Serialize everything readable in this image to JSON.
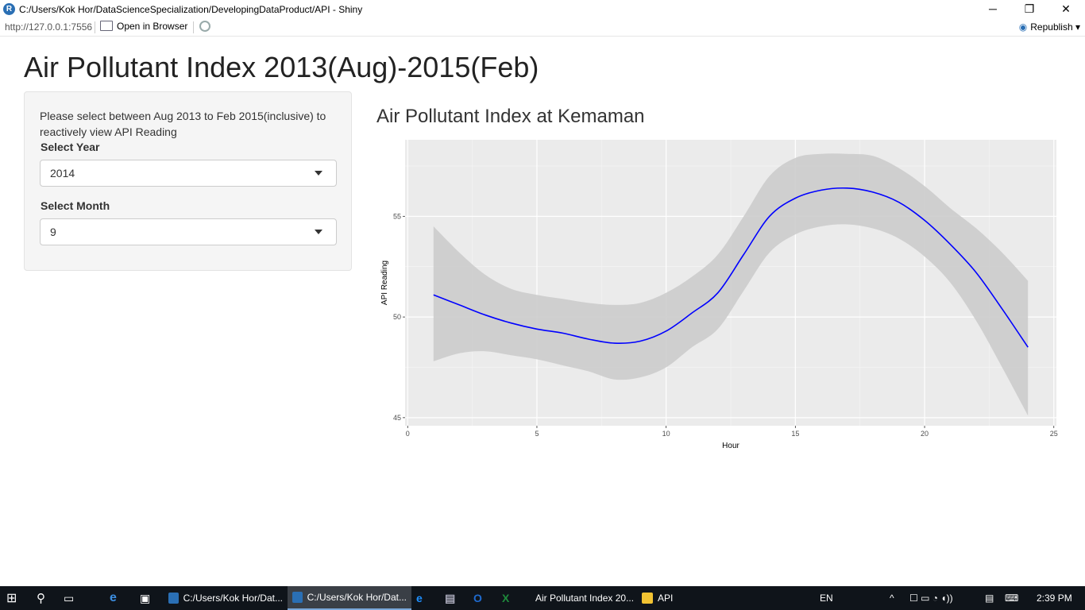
{
  "window": {
    "title": "C:/Users/Kok Hor/DataScienceSpecialization/DevelopingDataProduct/API - Shiny",
    "controls": [
      "─",
      "❐",
      "✕"
    ]
  },
  "toolbar": {
    "url": "http://127.0.0.1:7556",
    "open_in_browser": "Open in Browser",
    "republish": "Republish"
  },
  "page": {
    "title": "Air Pollutant Index 2013(Aug)-2015(Feb)"
  },
  "sidebar": {
    "instructions": "Please select between Aug 2013 to Feb 2015(inclusive) to reactively view API Reading",
    "year_label": "Select Year",
    "year_value": "2014",
    "month_label": "Select Month",
    "month_value": "9"
  },
  "chart_data": {
    "type": "line",
    "title": "Air Pollutant Index at Kemaman",
    "xlabel": "Hour",
    "ylabel": "API Reading",
    "xlim": [
      -0.1,
      25.1
    ],
    "ylim": [
      44.6,
      58.8
    ],
    "x_ticks": [
      0,
      5,
      10,
      15,
      20,
      25
    ],
    "y_ticks": [
      45,
      50,
      55
    ],
    "grid": true,
    "line_color": "#0000ff",
    "band_color": "#cccccc",
    "panel_color": "#ebebeb",
    "series": [
      {
        "x": [
          1,
          2,
          3,
          4,
          5,
          6,
          7,
          8,
          9,
          10,
          11,
          12,
          13,
          14,
          15,
          16,
          17,
          18,
          19,
          20,
          21,
          22,
          23,
          24
        ],
        "y": [
          51.1,
          50.6,
          50.1,
          49.7,
          49.4,
          49.2,
          48.9,
          48.7,
          48.8,
          49.3,
          50.2,
          51.2,
          53.1,
          55.0,
          55.9,
          56.3,
          56.4,
          56.2,
          55.7,
          54.8,
          53.6,
          52.2,
          50.4,
          48.5
        ],
        "lower": [
          47.8,
          48.2,
          48.3,
          48.1,
          47.9,
          47.6,
          47.3,
          46.9,
          47.0,
          47.5,
          48.5,
          49.4,
          51.3,
          53.2,
          54.1,
          54.5,
          54.6,
          54.4,
          53.9,
          53.0,
          51.7,
          49.8,
          47.5,
          45.1
        ],
        "upper": [
          54.5,
          53.2,
          52.1,
          51.4,
          51.1,
          50.9,
          50.7,
          50.6,
          50.7,
          51.2,
          52.0,
          53.1,
          55.0,
          57.0,
          57.9,
          58.1,
          58.1,
          58.0,
          57.4,
          56.5,
          55.4,
          54.4,
          53.2,
          51.8
        ]
      }
    ]
  },
  "taskbar": {
    "apps": [
      {
        "label": "C:/Users/Kok Hor/Dat...",
        "active": false,
        "color": "#2a6fb4"
      },
      {
        "label": "C:/Users/Kok Hor/Dat...",
        "active": true,
        "color": "#2a6fb4"
      },
      {
        "label": "Air Pollutant Index 20...",
        "active": false,
        "color": "#e8a21a"
      },
      {
        "label": "API",
        "active": false,
        "color": "#f1c232"
      }
    ],
    "lang": "EN",
    "time": "2:39 PM"
  }
}
